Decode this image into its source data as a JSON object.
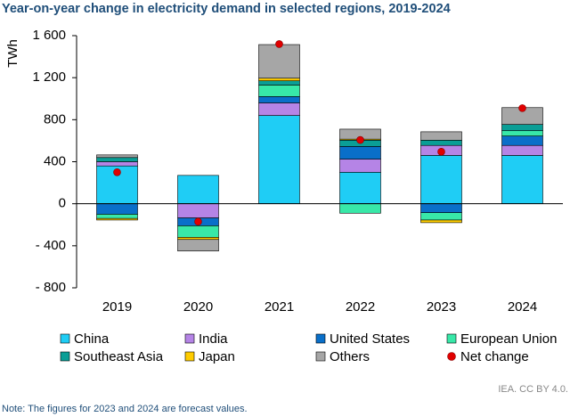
{
  "chart_data": {
    "type": "bar",
    "stacked": true,
    "title": "Year-on-year change in electricity demand in selected regions, 2019-2024",
    "y_label": "TWh",
    "note": "Note: The figures for 2023 and 2024 are forecast values.",
    "source": "IEA. CC BY 4.0.",
    "categories": [
      "2019",
      "2020",
      "2021",
      "2022",
      "2023",
      "2024"
    ],
    "series": [
      {
        "name": "China",
        "color": "#1fcdf5",
        "values": [
          360,
          270,
          840,
          300,
          460,
          460
        ]
      },
      {
        "name": "India",
        "color": "#b584e6",
        "values": [
          40,
          -135,
          120,
          125,
          95,
          95
        ]
      },
      {
        "name": "United States",
        "color": "#0a6fc9",
        "values": [
          -100,
          -75,
          60,
          120,
          -85,
          90
        ]
      },
      {
        "name": "European Union",
        "color": "#38e8a8",
        "values": [
          -40,
          -110,
          110,
          -90,
          -70,
          50
        ]
      },
      {
        "name": "Southeast Asia",
        "color": "#0a9e96",
        "values": [
          40,
          0,
          40,
          60,
          50,
          60
        ]
      },
      {
        "name": "Japan",
        "color": "#ffcc00",
        "values": [
          -15,
          -20,
          25,
          10,
          -25,
          0
        ]
      },
      {
        "name": "Others",
        "color": "#a6a6a6",
        "values": [
          25,
          -110,
          320,
          95,
          80,
          160
        ]
      }
    ],
    "net_change": {
      "name": "Net change",
      "color": "#e00000",
      "values": [
        300,
        -170,
        1520,
        607,
        495,
        910
      ]
    },
    "ylim": [
      -800,
      1600
    ],
    "yticks": [
      {
        "value": -800,
        "label": "- 800"
      },
      {
        "value": -400,
        "label": "- 400"
      },
      0,
      400,
      800,
      {
        "value": 1200,
        "label": "1 200"
      },
      {
        "value": 1600,
        "label": "1 600"
      }
    ],
    "grid": false
  }
}
